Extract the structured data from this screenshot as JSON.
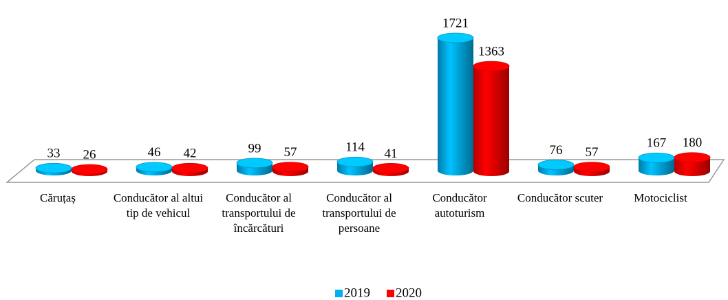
{
  "chart_data": {
    "type": "bar3d",
    "categories": [
      "Căruțaș",
      "Conducător al altui tip de vehicul",
      "Conducător al transportului de încărcături",
      "Conducător al transportului de persoane",
      "Conducător autoturism",
      "Conducător scuter",
      "Motociclist"
    ],
    "series": [
      {
        "name": "2019",
        "color": "#00b0f0",
        "values": [
          33,
          46,
          99,
          114,
          1721,
          76,
          167
        ]
      },
      {
        "name": "2020",
        "color": "#ff0000",
        "values": [
          26,
          42,
          57,
          41,
          1363,
          57,
          180
        ]
      }
    ],
    "legend": "bottom"
  }
}
